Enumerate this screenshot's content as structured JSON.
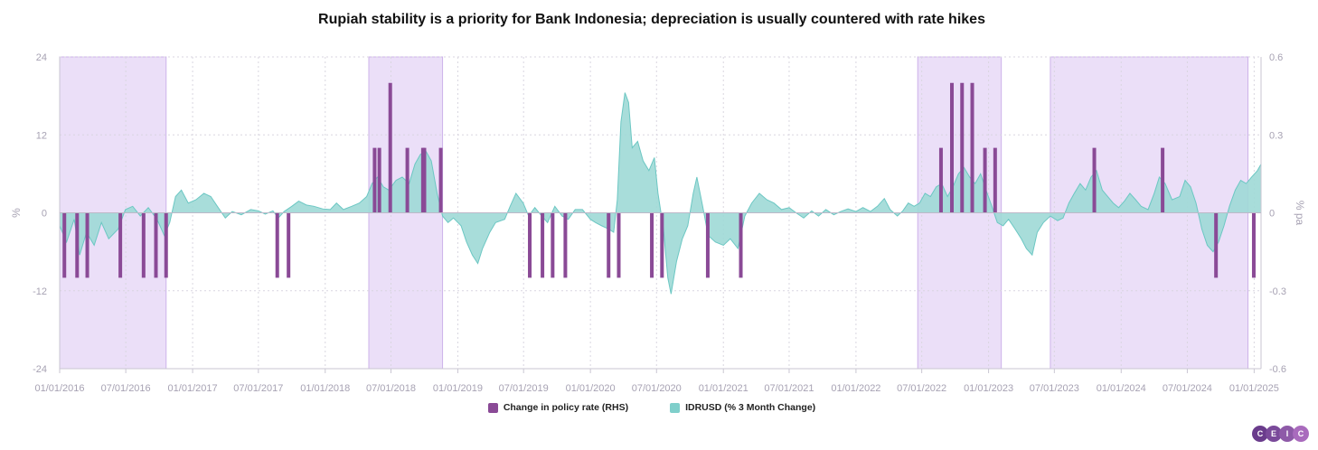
{
  "chart_data": {
    "type": "bar+area",
    "title": "Rupiah stability is a priority for Bank Indonesia; depreciation is usually countered with rate hikes",
    "ylabel_left": "%",
    "ylabel_right": "% pa",
    "ylim_left": [
      -24,
      24
    ],
    "ylim_right": [
      -0.6,
      0.6
    ],
    "yticks_left": [
      "24",
      "12",
      "0",
      "-12",
      "-24"
    ],
    "yticks_right": [
      "0.6",
      "0.3",
      "0",
      "-0.3",
      "-0.6"
    ],
    "xlim": [
      "2016-01-01",
      "2025-01-20"
    ],
    "xtick_labels": [
      "01/01/2016",
      "07/01/2016",
      "01/01/2017",
      "07/01/2017",
      "01/01/2018",
      "07/01/2018",
      "01/01/2019",
      "07/01/2019",
      "01/01/2020",
      "07/01/2020",
      "01/01/2021",
      "07/01/2021",
      "01/01/2022",
      "07/01/2022",
      "01/01/2023",
      "07/01/2023",
      "01/01/2024",
      "07/01/2024",
      "01/01/2025"
    ],
    "grid": true,
    "legend_position": "bottom-center",
    "colors": {
      "policy": "#8a4a96",
      "area_fill": "#9ed9d6",
      "area_line": "#6cc7c3",
      "band": "#ebdff8",
      "band_edge": "#cdb3ea"
    },
    "shaded_periods": [
      [
        "2016-01-01",
        "2016-10-20"
      ],
      [
        "2018-05-01",
        "2018-11-20"
      ],
      [
        "2022-06-20",
        "2023-02-05"
      ],
      [
        "2023-06-20",
        "2024-12-15"
      ]
    ],
    "series": [
      {
        "name": "Change in policy rate (RHS)",
        "type": "bar",
        "axis": "right",
        "points": [
          [
            "2016-01-14",
            -0.25
          ],
          [
            "2016-02-18",
            -0.25
          ],
          [
            "2016-03-17",
            -0.25
          ],
          [
            "2016-06-16",
            -0.25
          ],
          [
            "2016-08-19",
            -0.25
          ],
          [
            "2016-09-22",
            -0.25
          ],
          [
            "2016-10-20",
            -0.25
          ],
          [
            "2017-08-22",
            -0.25
          ],
          [
            "2017-09-22",
            -0.25
          ],
          [
            "2018-05-17",
            0.25
          ],
          [
            "2018-05-30",
            0.25
          ],
          [
            "2018-06-29",
            0.5
          ],
          [
            "2018-08-15",
            0.25
          ],
          [
            "2018-09-27",
            0.25
          ],
          [
            "2018-10-01",
            0.25
          ],
          [
            "2018-11-15",
            0.25
          ],
          [
            "2019-07-18",
            -0.25
          ],
          [
            "2019-08-22",
            -0.25
          ],
          [
            "2019-09-19",
            -0.25
          ],
          [
            "2019-10-24",
            -0.25
          ],
          [
            "2020-02-20",
            -0.25
          ],
          [
            "2020-03-19",
            -0.25
          ],
          [
            "2020-06-18",
            -0.25
          ],
          [
            "2020-07-16",
            -0.25
          ],
          [
            "2020-11-19",
            -0.25
          ],
          [
            "2021-02-18",
            -0.25
          ],
          [
            "2022-08-23",
            0.25
          ],
          [
            "2022-09-22",
            0.5
          ],
          [
            "2022-10-20",
            0.5
          ],
          [
            "2022-11-17",
            0.5
          ],
          [
            "2022-12-22",
            0.25
          ],
          [
            "2023-01-19",
            0.25
          ],
          [
            "2023-10-19",
            0.25
          ],
          [
            "2024-04-24",
            0.25
          ],
          [
            "2024-09-18",
            -0.25
          ],
          [
            "2024-12-31",
            -0.25
          ]
        ]
      },
      {
        "name": "IDRUSD (% 3 Month Change)",
        "type": "area",
        "axis": "left",
        "points": [
          [
            "2016-01-01",
            -2.0
          ],
          [
            "2016-01-20",
            -4.5
          ],
          [
            "2016-02-10",
            -1.0
          ],
          [
            "2016-02-25",
            -6.5
          ],
          [
            "2016-03-15",
            -3.0
          ],
          [
            "2016-04-05",
            -5.0
          ],
          [
            "2016-04-25",
            -1.5
          ],
          [
            "2016-05-15",
            -4.0
          ],
          [
            "2016-06-10",
            -2.5
          ],
          [
            "2016-06-30",
            0.5
          ],
          [
            "2016-07-20",
            1.0
          ],
          [
            "2016-08-10",
            -0.5
          ],
          [
            "2016-09-01",
            0.8
          ],
          [
            "2016-09-25",
            -1.0
          ],
          [
            "2016-10-15",
            -3.5
          ],
          [
            "2016-10-30",
            -1.5
          ],
          [
            "2016-11-15",
            2.5
          ],
          [
            "2016-12-01",
            3.5
          ],
          [
            "2016-12-20",
            1.5
          ],
          [
            "2017-01-10",
            2.0
          ],
          [
            "2017-02-01",
            3.0
          ],
          [
            "2017-02-20",
            2.5
          ],
          [
            "2017-03-10",
            1.0
          ],
          [
            "2017-04-01",
            -0.8
          ],
          [
            "2017-04-20",
            0.2
          ],
          [
            "2017-05-15",
            -0.3
          ],
          [
            "2017-06-10",
            0.5
          ],
          [
            "2017-07-01",
            0.3
          ],
          [
            "2017-07-20",
            -0.2
          ],
          [
            "2017-08-10",
            0.3
          ],
          [
            "2017-08-25",
            -0.8
          ],
          [
            "2017-09-10",
            0.2
          ],
          [
            "2017-10-01",
            1.0
          ],
          [
            "2017-10-20",
            1.8
          ],
          [
            "2017-11-10",
            1.2
          ],
          [
            "2017-12-01",
            1.0
          ],
          [
            "2017-12-25",
            0.6
          ],
          [
            "2018-01-15",
            0.5
          ],
          [
            "2018-02-01",
            1.5
          ],
          [
            "2018-02-20",
            0.5
          ],
          [
            "2018-03-15",
            1.0
          ],
          [
            "2018-04-05",
            1.5
          ],
          [
            "2018-04-25",
            2.5
          ],
          [
            "2018-05-10",
            4.5
          ],
          [
            "2018-05-25",
            5.5
          ],
          [
            "2018-06-10",
            4.0
          ],
          [
            "2018-06-25",
            3.5
          ],
          [
            "2018-07-15",
            5.0
          ],
          [
            "2018-08-01",
            5.5
          ],
          [
            "2018-08-20",
            4.5
          ],
          [
            "2018-09-05",
            7.5
          ],
          [
            "2018-09-20",
            9.0
          ],
          [
            "2018-10-05",
            9.5
          ],
          [
            "2018-10-20",
            8.0
          ],
          [
            "2018-11-05",
            3.0
          ],
          [
            "2018-11-20",
            -0.5
          ],
          [
            "2018-12-05",
            -1.5
          ],
          [
            "2018-12-20",
            -0.8
          ],
          [
            "2019-01-10",
            -2.0
          ],
          [
            "2019-01-25",
            -4.5
          ],
          [
            "2019-02-10",
            -6.5
          ],
          [
            "2019-02-25",
            -7.8
          ],
          [
            "2019-03-10",
            -5.5
          ],
          [
            "2019-03-30",
            -3.0
          ],
          [
            "2019-04-15",
            -1.5
          ],
          [
            "2019-05-10",
            -1.0
          ],
          [
            "2019-05-25",
            1.0
          ],
          [
            "2019-06-10",
            3.0
          ],
          [
            "2019-06-30",
            1.5
          ],
          [
            "2019-07-15",
            -0.5
          ],
          [
            "2019-08-01",
            0.8
          ],
          [
            "2019-08-20",
            -0.5
          ],
          [
            "2019-09-05",
            -1.5
          ],
          [
            "2019-09-25",
            1.0
          ],
          [
            "2019-10-15",
            -0.5
          ],
          [
            "2019-11-01",
            -1.0
          ],
          [
            "2019-11-20",
            0.5
          ],
          [
            "2019-12-10",
            0.5
          ],
          [
            "2020-01-01",
            -1.0
          ],
          [
            "2020-01-15",
            -1.5
          ],
          [
            "2020-02-01",
            -2.0
          ],
          [
            "2020-02-20",
            -2.5
          ],
          [
            "2020-03-05",
            -3.0
          ],
          [
            "2020-03-15",
            2.0
          ],
          [
            "2020-03-25",
            14.0
          ],
          [
            "2020-04-05",
            18.5
          ],
          [
            "2020-04-15",
            17.0
          ],
          [
            "2020-04-25",
            10.0
          ],
          [
            "2020-05-10",
            11.0
          ],
          [
            "2020-05-25",
            8.0
          ],
          [
            "2020-06-10",
            6.5
          ],
          [
            "2020-06-25",
            8.5
          ],
          [
            "2020-07-05",
            3.0
          ],
          [
            "2020-07-20",
            -2.5
          ],
          [
            "2020-08-01",
            -10.0
          ],
          [
            "2020-08-10",
            -12.5
          ],
          [
            "2020-08-25",
            -7.5
          ],
          [
            "2020-09-10",
            -4.0
          ],
          [
            "2020-09-25",
            -2.0
          ],
          [
            "2020-10-10",
            3.0
          ],
          [
            "2020-10-20",
            5.5
          ],
          [
            "2020-11-05",
            1.0
          ],
          [
            "2020-11-20",
            -3.5
          ],
          [
            "2020-12-10",
            -4.5
          ],
          [
            "2021-01-01",
            -5.0
          ],
          [
            "2021-01-20",
            -4.0
          ],
          [
            "2021-02-10",
            -5.5
          ],
          [
            "2021-03-01",
            -0.5
          ],
          [
            "2021-03-20",
            1.5
          ],
          [
            "2021-04-10",
            3.0
          ],
          [
            "2021-05-01",
            2.0
          ],
          [
            "2021-05-20",
            1.5
          ],
          [
            "2021-06-10",
            0.5
          ],
          [
            "2021-07-01",
            0.8
          ],
          [
            "2021-07-20",
            0.0
          ],
          [
            "2021-08-10",
            -0.8
          ],
          [
            "2021-09-01",
            0.3
          ],
          [
            "2021-09-20",
            -0.5
          ],
          [
            "2021-10-10",
            0.5
          ],
          [
            "2021-11-01",
            -0.3
          ],
          [
            "2021-11-20",
            0.2
          ],
          [
            "2021-12-10",
            0.6
          ],
          [
            "2022-01-01",
            0.2
          ],
          [
            "2022-01-20",
            0.8
          ],
          [
            "2022-02-10",
            0.2
          ],
          [
            "2022-03-01",
            1.0
          ],
          [
            "2022-03-20",
            2.2
          ],
          [
            "2022-04-05",
            0.5
          ],
          [
            "2022-04-25",
            -0.5
          ],
          [
            "2022-05-10",
            0.3
          ],
          [
            "2022-05-25",
            1.5
          ],
          [
            "2022-06-10",
            1.0
          ],
          [
            "2022-06-25",
            1.5
          ],
          [
            "2022-07-10",
            3.0
          ],
          [
            "2022-07-25",
            2.5
          ],
          [
            "2022-08-10",
            4.0
          ],
          [
            "2022-08-25",
            4.5
          ],
          [
            "2022-09-10",
            2.5
          ],
          [
            "2022-09-25",
            4.0
          ],
          [
            "2022-10-10",
            6.0
          ],
          [
            "2022-10-25",
            7.0
          ],
          [
            "2022-11-10",
            5.5
          ],
          [
            "2022-11-25",
            4.5
          ],
          [
            "2022-12-10",
            6.0
          ],
          [
            "2022-12-25",
            3.5
          ],
          [
            "2023-01-10",
            1.0
          ],
          [
            "2023-01-25",
            -1.5
          ],
          [
            "2023-02-10",
            -2.0
          ],
          [
            "2023-02-25",
            -1.0
          ],
          [
            "2023-03-15",
            -2.5
          ],
          [
            "2023-04-01",
            -4.0
          ],
          [
            "2023-04-15",
            -5.5
          ],
          [
            "2023-05-01",
            -6.5
          ],
          [
            "2023-05-15",
            -3.0
          ],
          [
            "2023-06-01",
            -1.5
          ],
          [
            "2023-06-20",
            -0.5
          ],
          [
            "2023-07-10",
            -1.2
          ],
          [
            "2023-07-25",
            -0.8
          ],
          [
            "2023-08-10",
            1.5
          ],
          [
            "2023-08-25",
            3.0
          ],
          [
            "2023-09-10",
            4.5
          ],
          [
            "2023-09-25",
            3.5
          ],
          [
            "2023-10-10",
            5.5
          ],
          [
            "2023-10-25",
            6.5
          ],
          [
            "2023-11-10",
            3.5
          ],
          [
            "2023-11-25",
            2.5
          ],
          [
            "2023-12-10",
            1.5
          ],
          [
            "2023-12-25",
            0.8
          ],
          [
            "2024-01-10",
            1.8
          ],
          [
            "2024-01-25",
            3.0
          ],
          [
            "2024-02-10",
            2.0
          ],
          [
            "2024-02-25",
            1.0
          ],
          [
            "2024-03-15",
            0.5
          ],
          [
            "2024-04-01",
            3.0
          ],
          [
            "2024-04-15",
            5.5
          ],
          [
            "2024-05-01",
            4.5
          ],
          [
            "2024-05-20",
            2.0
          ],
          [
            "2024-06-10",
            2.5
          ],
          [
            "2024-06-25",
            5.0
          ],
          [
            "2024-07-10",
            4.0
          ],
          [
            "2024-07-25",
            1.5
          ],
          [
            "2024-08-10",
            -2.5
          ],
          [
            "2024-08-25",
            -5.0
          ],
          [
            "2024-09-10",
            -6.0
          ],
          [
            "2024-09-25",
            -4.5
          ],
          [
            "2024-10-10",
            -2.0
          ],
          [
            "2024-10-25",
            1.0
          ],
          [
            "2024-11-10",
            3.5
          ],
          [
            "2024-11-25",
            5.0
          ],
          [
            "2024-12-10",
            4.5
          ],
          [
            "2024-12-25",
            5.5
          ],
          [
            "2025-01-10",
            6.5
          ],
          [
            "2025-01-20",
            7.5
          ]
        ]
      }
    ]
  },
  "brand": {
    "letters": [
      "C",
      "E",
      "I",
      "C"
    ],
    "colors": [
      "#6a3c8c",
      "#7a4a9a",
      "#8e5aa8",
      "#a96bbd"
    ]
  }
}
